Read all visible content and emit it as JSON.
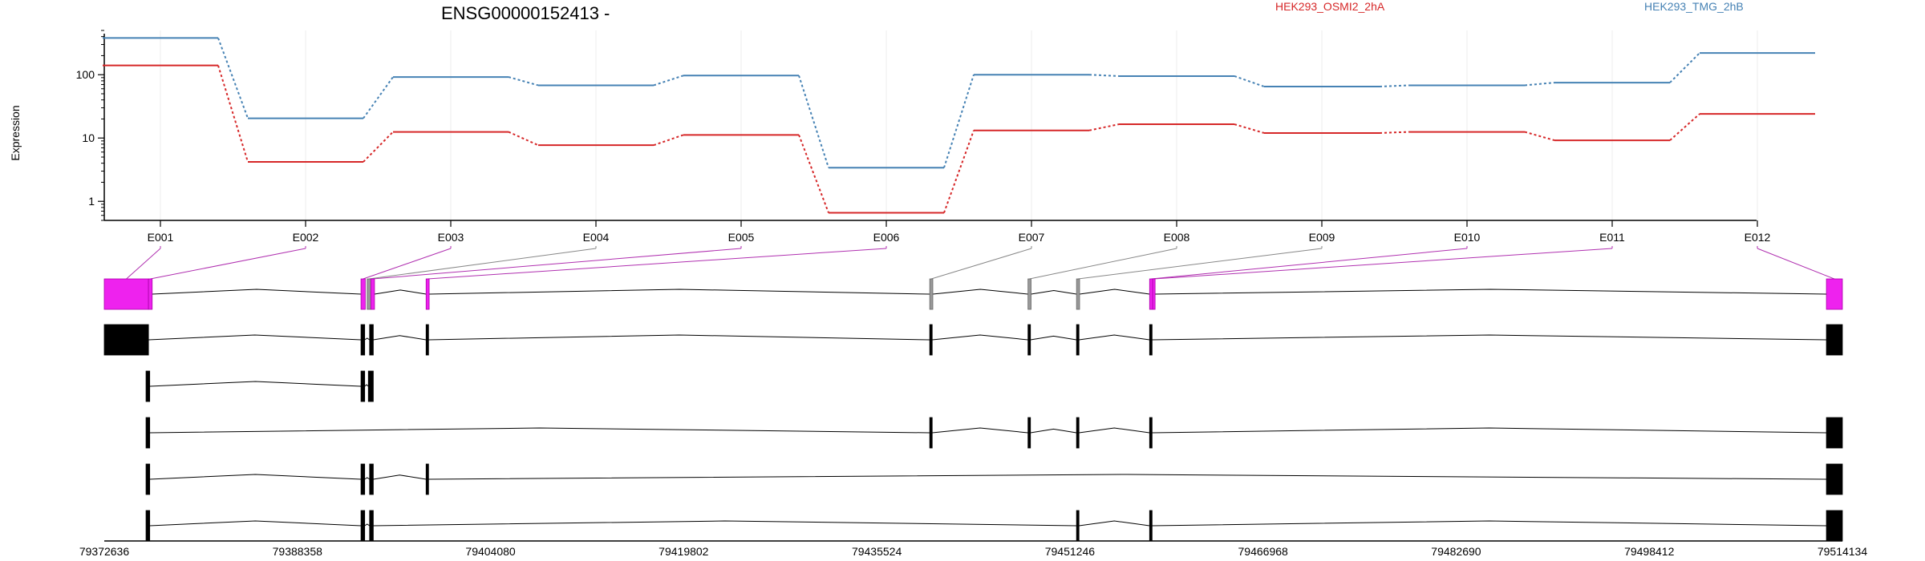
{
  "chart_data": {
    "type": "line",
    "title": "ENSG00000152413 -",
    "ylabel": "Expression",
    "yscale": "log",
    "ylim": [
      0.5,
      500
    ],
    "y_ticks": [
      1,
      10,
      100
    ],
    "y_tick_labels": [
      "1",
      "10",
      "100"
    ],
    "categories": [
      "E001",
      "E002",
      "E003",
      "E004",
      "E005",
      "E006",
      "E007",
      "E008",
      "E009",
      "E010",
      "E011",
      "E012"
    ],
    "series": [
      {
        "name": "HEK293_OSMI2_2hA",
        "color": "#d62728",
        "values": [
          140,
          4.2,
          12.5,
          7.7,
          11.2,
          0.66,
          13.2,
          16.5,
          12.0,
          12.5,
          9.2,
          24.0
        ]
      },
      {
        "name": "HEK293_TMG_2hB",
        "color": "#4682b4",
        "values": [
          380,
          20.5,
          92,
          68,
          97,
          3.4,
          100,
          95,
          65,
          68,
          75,
          220
        ]
      }
    ],
    "legend_placement": "top-right",
    "grid": true,
    "genomic_axis": {
      "range": [
        79372636,
        79514134
      ],
      "tick_labels": [
        "79372636",
        "79388358",
        "79404080",
        "79419802",
        "79435524",
        "79451246",
        "79466968",
        "79482690",
        "79498412",
        "79514134"
      ]
    },
    "exons": [
      {
        "id": "E001",
        "start": 79372636,
        "end": 79376236,
        "highlight": true
      },
      {
        "id": "E002",
        "start": 79376236,
        "end": 79376536,
        "highlight": true
      },
      {
        "id": "E003",
        "start": 79393536,
        "end": 79393886,
        "highlight": true
      },
      {
        "id": "E004",
        "start": 79394036,
        "end": 79394336,
        "highlight": false
      },
      {
        "id": "E005",
        "start": 79394336,
        "end": 79394636,
        "highlight": true
      },
      {
        "id": "E006",
        "start": 79398836,
        "end": 79399086,
        "highlight": true
      },
      {
        "id": "E007",
        "start": 79439836,
        "end": 79440086,
        "highlight": false
      },
      {
        "id": "E008",
        "start": 79447836,
        "end": 79448086,
        "highlight": false
      },
      {
        "id": "E009",
        "start": 79451786,
        "end": 79452036,
        "highlight": false
      },
      {
        "id": "E010",
        "start": 79457736,
        "end": 79457986,
        "highlight": true
      },
      {
        "id": "E011",
        "start": 79457986,
        "end": 79458136,
        "highlight": true
      },
      {
        "id": "E012",
        "start": 79512834,
        "end": 79514134,
        "highlight": true
      }
    ],
    "transcripts": [
      {
        "blocks": [
          [
            79372636,
            79376236
          ],
          [
            79393536,
            79393836
          ],
          [
            79394236,
            79394536
          ],
          [
            79398836,
            79399036
          ],
          [
            79439836,
            79440036
          ],
          [
            79447836,
            79448036
          ],
          [
            79451786,
            79451986
          ],
          [
            79457736,
            79457936
          ],
          [
            79512834,
            79514134
          ]
        ]
      },
      {
        "blocks": [
          [
            79376036,
            79376336
          ],
          [
            79393536,
            79393836
          ],
          [
            79394136,
            79394536
          ]
        ]
      },
      {
        "blocks": [
          [
            79376036,
            79376336
          ],
          [
            79439836,
            79440036
          ],
          [
            79447836,
            79448036
          ],
          [
            79451786,
            79451986
          ],
          [
            79457736,
            79457936
          ],
          [
            79512834,
            79514134
          ]
        ]
      },
      {
        "blocks": [
          [
            79376036,
            79376336
          ],
          [
            79393536,
            79393836
          ],
          [
            79394236,
            79394536
          ],
          [
            79398836,
            79399036
          ],
          [
            79512834,
            79514134
          ]
        ]
      },
      {
        "blocks": [
          [
            79376036,
            79376336
          ],
          [
            79393536,
            79393836
          ],
          [
            79394236,
            79394536
          ],
          [
            79451786,
            79451986
          ],
          [
            79457736,
            79457936
          ],
          [
            79512834,
            79514134
          ]
        ]
      }
    ]
  }
}
